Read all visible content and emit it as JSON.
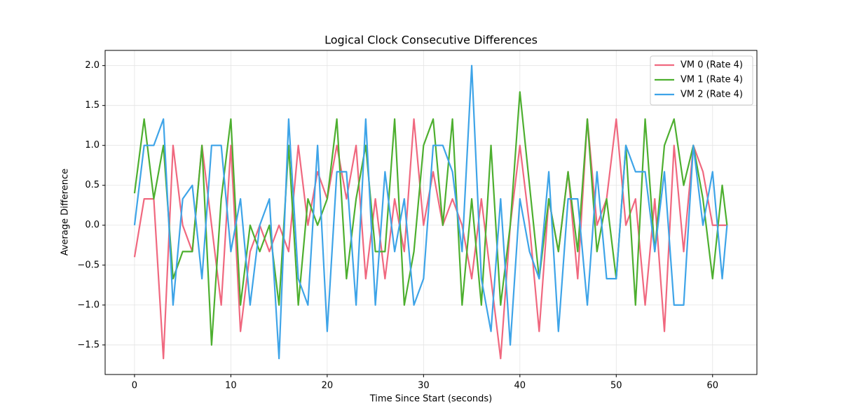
{
  "chart_data": {
    "type": "line",
    "title": "Logical Clock Consecutive Differences",
    "x_label": "Time Since Start (seconds)",
    "y_label": "Average Difference",
    "x": [
      0,
      1,
      2,
      3,
      4,
      5,
      6,
      7,
      8,
      9,
      10,
      11,
      12,
      13,
      14,
      15,
      16,
      17,
      18,
      19,
      20,
      21,
      22,
      23,
      24,
      25,
      26,
      27,
      28,
      29,
      30,
      31,
      32,
      33,
      34,
      35,
      36,
      37,
      38,
      39,
      40,
      41,
      42,
      43,
      44,
      45,
      46,
      47,
      48,
      49,
      50,
      51,
      52,
      53,
      54,
      55,
      56,
      57,
      58,
      59,
      60,
      61,
      61.5
    ],
    "series": [
      {
        "name": "VM 0 (Rate 4)",
        "color": "#f0687f",
        "values": [
          -0.4,
          0.33,
          0.33,
          -1.67,
          1.0,
          0,
          -0.33,
          1.0,
          0,
          -1.0,
          1.0,
          -1.33,
          -0.33,
          0,
          -0.33,
          0,
          -0.33,
          1.0,
          0,
          0.67,
          0.33,
          1.0,
          0.33,
          1.0,
          -0.67,
          0.33,
          -0.67,
          0.33,
          -0.33,
          1.33,
          0,
          0.67,
          0,
          0.33,
          0,
          -0.67,
          0.33,
          -0.67,
          -1.67,
          0,
          1.0,
          0,
          -1.33,
          0.33,
          -0.33,
          0.67,
          -0.67,
          1.33,
          0,
          0.33,
          1.33,
          0,
          0.33,
          -1.0,
          0.33,
          -1.33,
          1.0,
          -0.33,
          1.0,
          0.67,
          0.0,
          0.0,
          0.0
        ]
      },
      {
        "name": "VM 1 (Rate 4)",
        "color": "#4daf2f",
        "values": [
          0.4,
          1.33,
          0.33,
          1.0,
          -0.67,
          -0.33,
          -0.33,
          1.0,
          -1.5,
          0.33,
          1.33,
          -1.0,
          0,
          -0.33,
          0,
          -1.0,
          1.0,
          -1.0,
          0.33,
          0,
          0.33,
          1.33,
          -0.67,
          0.33,
          1.0,
          -0.33,
          -0.33,
          1.33,
          -1.0,
          -0.33,
          1.0,
          1.33,
          0,
          1.33,
          -1.0,
          0.33,
          -1.0,
          1.0,
          -1.0,
          0,
          1.67,
          0.5,
          -0.67,
          0.33,
          -0.33,
          0.67,
          -0.33,
          1.33,
          -0.33,
          0.33,
          -0.67,
          1.0,
          -1.0,
          1.33,
          -0.33,
          1.0,
          1.33,
          0.5,
          1.0,
          0.33,
          -0.67,
          0.5,
          0.0
        ]
      },
      {
        "name": "VM 2 (Rate 4)",
        "color": "#3ea4e8",
        "values": [
          0,
          1.0,
          1.0,
          1.33,
          -1.0,
          0.33,
          0.5,
          -0.67,
          1.0,
          1.0,
          -0.33,
          0.33,
          -1.0,
          0,
          0.33,
          -1.67,
          1.33,
          -0.67,
          -1.0,
          1.0,
          -1.33,
          0.67,
          0.67,
          -1.0,
          1.33,
          -1.0,
          0.67,
          -0.33,
          0.33,
          -1.0,
          -0.67,
          1.0,
          1.0,
          0.67,
          -0.33,
          2.0,
          -0.67,
          -1.33,
          0.33,
          -1.5,
          0.33,
          -0.33,
          -0.67,
          0.67,
          -1.33,
          0.33,
          0.33,
          -1.0,
          0.67,
          -0.67,
          -0.67,
          1.0,
          0.67,
          0.67,
          -0.33,
          0.67,
          -1.0,
          -1.0,
          1.0,
          0.0,
          0.67,
          -0.67,
          0.0
        ]
      }
    ],
    "xlim": [
      -3.05,
      64.6
    ],
    "ylim": [
      -1.87,
      2.19
    ],
    "xticks": [
      0,
      10,
      20,
      30,
      40,
      50,
      60
    ],
    "yticks": [
      {
        "value": -1.5,
        "label": "−1.5"
      },
      {
        "value": -1.0,
        "label": "−1.0"
      },
      {
        "value": -0.5,
        "label": "−0.5"
      },
      {
        "value": 0.0,
        "label": "0.0"
      },
      {
        "value": 0.5,
        "label": "0.5"
      },
      {
        "value": 1.0,
        "label": "1.0"
      },
      {
        "value": 1.5,
        "label": "1.5"
      },
      {
        "value": 2.0,
        "label": "2.0"
      }
    ],
    "grid": true,
    "legend": "upper right"
  }
}
